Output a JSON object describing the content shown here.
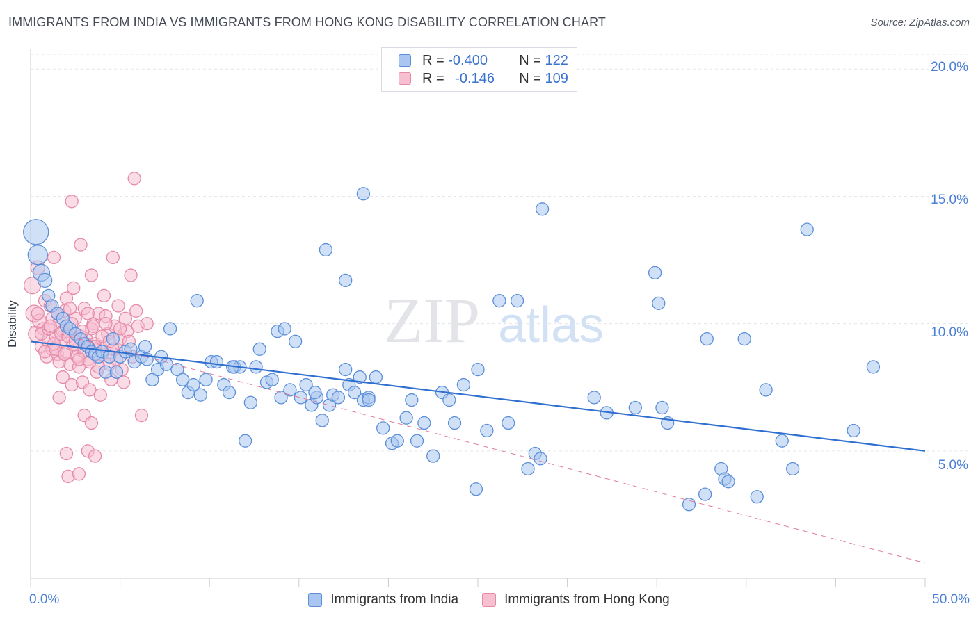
{
  "header": {
    "title": "IMMIGRANTS FROM INDIA VS IMMIGRANTS FROM HONG KONG DISABILITY CORRELATION CHART",
    "source": "Source: ZipAtlas.com"
  },
  "watermark": {
    "zip": "ZIP",
    "atlas": "atlas"
  },
  "legend": {
    "rows": [
      {
        "r_label": "R = ",
        "r_value": "-0.400",
        "n_label": "N = ",
        "n_value": "122",
        "color": "#5b8fd9",
        "fill": "#a9c6f0"
      },
      {
        "r_label": "R = ",
        "r_value": "-0.146",
        "n_label": "N = ",
        "n_value": "109",
        "color": "#e68aa8",
        "fill": "#f6c0d1"
      }
    ]
  },
  "chart_data": {
    "type": "scatter",
    "title": "IMMIGRANTS FROM INDIA VS IMMIGRANTS FROM HONG KONG DISABILITY CORRELATION CHART",
    "xlabel": "",
    "ylabel": "Disability",
    "xlim": [
      0,
      50
    ],
    "ylim": [
      0,
      20.8
    ],
    "x_tick_labels": [
      "0.0%",
      "50.0%"
    ],
    "y_ticks": [
      5,
      10,
      15,
      20
    ],
    "y_tick_labels": [
      "5.0%",
      "10.0%",
      "15.0%",
      "20.0%"
    ],
    "grid": true,
    "legend_position": "bottom-center",
    "series": [
      {
        "name": "Immigrants from India",
        "color": "#5b8fd9",
        "fill": "#a9c6f0",
        "trend": {
          "x": [
            0,
            50
          ],
          "y": [
            9.3,
            5.0
          ],
          "style": "solid"
        },
        "points": [
          [
            0.3,
            13.6,
            18
          ],
          [
            0.4,
            12.7,
            14
          ],
          [
            0.6,
            12.0,
            12
          ],
          [
            0.8,
            11.7,
            10
          ],
          [
            1.0,
            11.1,
            9
          ],
          [
            1.2,
            10.7,
            9
          ],
          [
            1.5,
            10.4,
            9
          ],
          [
            1.8,
            10.2,
            9
          ],
          [
            2.0,
            9.9,
            9
          ],
          [
            2.2,
            9.8,
            9
          ],
          [
            2.5,
            9.6,
            9
          ],
          [
            2.8,
            9.4,
            9
          ],
          [
            3.0,
            9.2,
            9
          ],
          [
            3.2,
            9.1,
            9
          ],
          [
            3.4,
            8.9,
            9
          ],
          [
            3.6,
            8.8,
            9
          ],
          [
            3.8,
            8.7,
            9
          ],
          [
            4.0,
            8.9,
            9
          ],
          [
            4.2,
            8.1,
            9
          ],
          [
            4.4,
            8.7,
            9
          ],
          [
            4.6,
            9.4,
            9
          ],
          [
            4.8,
            8.1,
            9
          ],
          [
            5.0,
            8.7,
            9
          ],
          [
            5.3,
            8.9,
            9
          ],
          [
            5.6,
            9.0,
            9
          ],
          [
            5.8,
            8.5,
            9
          ],
          [
            6.2,
            8.7,
            9
          ],
          [
            6.5,
            8.6,
            9
          ],
          [
            6.4,
            9.1,
            9
          ],
          [
            6.8,
            7.8,
            9
          ],
          [
            7.1,
            8.2,
            9
          ],
          [
            7.3,
            8.7,
            9
          ],
          [
            7.6,
            8.4,
            9
          ],
          [
            7.8,
            9.8,
            9
          ],
          [
            8.2,
            8.2,
            9
          ],
          [
            8.5,
            7.8,
            9
          ],
          [
            8.8,
            7.3,
            9
          ],
          [
            9.1,
            7.6,
            9
          ],
          [
            9.5,
            7.2,
            9
          ],
          [
            9.3,
            10.9,
            9
          ],
          [
            9.8,
            7.8,
            9
          ],
          [
            10.1,
            8.5,
            9
          ],
          [
            10.4,
            8.5,
            9
          ],
          [
            10.8,
            7.6,
            9
          ],
          [
            11.1,
            7.3,
            9
          ],
          [
            11.4,
            8.3,
            9
          ],
          [
            11.7,
            8.3,
            9
          ],
          [
            12.0,
            5.4,
            9
          ],
          [
            12.3,
            6.9,
            9
          ],
          [
            12.6,
            8.3,
            9
          ],
          [
            12.8,
            9.0,
            9
          ],
          [
            13.2,
            7.7,
            9
          ],
          [
            13.5,
            7.8,
            9
          ],
          [
            13.8,
            9.7,
            9
          ],
          [
            14.0,
            7.1,
            9
          ],
          [
            14.2,
            9.8,
            9
          ],
          [
            14.5,
            7.4,
            9
          ],
          [
            14.8,
            9.3,
            9
          ],
          [
            15.1,
            7.1,
            9
          ],
          [
            15.4,
            7.6,
            9
          ],
          [
            15.7,
            6.8,
            9
          ],
          [
            16.0,
            7.1,
            9
          ],
          [
            16.3,
            6.2,
            9
          ],
          [
            16.7,
            6.8,
            9
          ],
          [
            16.9,
            7.2,
            9
          ],
          [
            17.2,
            7.1,
            9
          ],
          [
            17.6,
            8.2,
            9
          ],
          [
            17.8,
            7.6,
            9
          ],
          [
            16.5,
            12.9,
            9
          ],
          [
            18.1,
            7.3,
            9
          ],
          [
            18.4,
            7.9,
            9
          ],
          [
            18.6,
            7.0,
            9
          ],
          [
            18.9,
            7.1,
            9
          ],
          [
            19.3,
            7.9,
            9
          ],
          [
            19.7,
            5.9,
            9
          ],
          [
            20.2,
            5.3,
            9
          ],
          [
            20.5,
            5.4,
            9
          ],
          [
            21.0,
            6.3,
            9
          ],
          [
            21.3,
            7.0,
            9
          ],
          [
            21.6,
            5.4,
            9
          ],
          [
            22.0,
            6.1,
            9
          ],
          [
            22.5,
            4.8,
            9
          ],
          [
            23.0,
            7.3,
            9
          ],
          [
            23.4,
            7.0,
            9
          ],
          [
            23.7,
            6.1,
            9
          ],
          [
            17.6,
            11.7,
            9
          ],
          [
            18.9,
            7.0,
            9
          ],
          [
            24.2,
            7.6,
            9
          ],
          [
            24.9,
            3.5,
            9
          ],
          [
            25.0,
            8.2,
            9
          ],
          [
            25.5,
            5.8,
            9
          ],
          [
            26.2,
            10.9,
            9
          ],
          [
            26.7,
            6.1,
            9
          ],
          [
            27.2,
            10.9,
            9
          ],
          [
            27.8,
            4.3,
            9
          ],
          [
            28.2,
            4.9,
            9
          ],
          [
            28.5,
            4.7,
            9
          ],
          [
            28.6,
            14.5,
            9
          ],
          [
            31.5,
            7.1,
            9
          ],
          [
            32.2,
            6.5,
            9
          ],
          [
            33.8,
            6.7,
            9
          ],
          [
            34.9,
            12.0,
            9
          ],
          [
            35.1,
            10.8,
            9
          ],
          [
            35.3,
            6.7,
            9
          ],
          [
            35.6,
            6.1,
            9
          ],
          [
            37.8,
            9.4,
            9
          ],
          [
            36.8,
            2.9,
            9
          ],
          [
            37.7,
            3.3,
            9
          ],
          [
            38.6,
            4.3,
            9
          ],
          [
            38.8,
            3.9,
            9
          ],
          [
            39.0,
            3.8,
            9
          ],
          [
            39.9,
            9.4,
            9
          ],
          [
            40.6,
            3.2,
            9
          ],
          [
            41.1,
            7.4,
            9
          ],
          [
            42.0,
            5.4,
            9
          ],
          [
            42.6,
            4.3,
            9
          ],
          [
            43.4,
            13.7,
            9
          ],
          [
            46.0,
            5.8,
            9
          ],
          [
            47.1,
            8.3,
            9
          ],
          [
            18.6,
            15.1,
            9
          ],
          [
            11.3,
            8.3,
            9
          ],
          [
            15.9,
            7.3,
            9
          ]
        ]
      },
      {
        "name": "Immigrants from Hong Kong",
        "color": "#e68aa8",
        "fill": "#f6c0d1",
        "trend": {
          "x": [
            0,
            50
          ],
          "y": [
            9.9,
            0.6
          ],
          "style": "dashed"
        },
        "points": [
          [
            0.1,
            11.5,
            12
          ],
          [
            0.2,
            10.4,
            12
          ],
          [
            0.3,
            9.6,
            11
          ],
          [
            0.4,
            12.2,
            10
          ],
          [
            0.5,
            10.1,
            10
          ],
          [
            0.6,
            9.1,
            9
          ],
          [
            0.7,
            9.8,
            9
          ],
          [
            0.8,
            10.9,
            9
          ],
          [
            0.9,
            8.7,
            9
          ],
          [
            1.0,
            9.3,
            9
          ],
          [
            1.1,
            10.7,
            9
          ],
          [
            1.2,
            9.0,
            9
          ],
          [
            1.3,
            12.6,
            9
          ],
          [
            1.4,
            9.5,
            9
          ],
          [
            1.5,
            8.8,
            9
          ],
          [
            1.6,
            10.1,
            9
          ],
          [
            1.7,
            9.3,
            9
          ],
          [
            1.8,
            7.9,
            9
          ],
          [
            1.9,
            10.5,
            9
          ],
          [
            2.0,
            11.0,
            9
          ],
          [
            2.1,
            9.7,
            9
          ],
          [
            2.2,
            8.4,
            9
          ],
          [
            2.3,
            7.6,
            9
          ],
          [
            2.4,
            11.4,
            9
          ],
          [
            2.5,
            10.2,
            9
          ],
          [
            2.6,
            9.0,
            9
          ],
          [
            2.7,
            8.3,
            9
          ],
          [
            2.8,
            13.1,
            9
          ],
          [
            2.9,
            7.7,
            9
          ],
          [
            3.0,
            10.6,
            9
          ],
          [
            3.1,
            9.4,
            9
          ],
          [
            3.2,
            8.6,
            9
          ],
          [
            3.3,
            7.4,
            9
          ],
          [
            3.4,
            11.9,
            9
          ],
          [
            3.5,
            10.0,
            9
          ],
          [
            3.6,
            9.2,
            9
          ],
          [
            3.7,
            8.1,
            9
          ],
          [
            3.8,
            10.4,
            9
          ],
          [
            3.9,
            9.1,
            9
          ],
          [
            4.0,
            8.8,
            9
          ],
          [
            4.1,
            11.1,
            9
          ],
          [
            4.2,
            10.3,
            9
          ],
          [
            4.3,
            9.6,
            9
          ],
          [
            4.4,
            8.4,
            9
          ],
          [
            4.5,
            7.8,
            9
          ],
          [
            4.6,
            12.6,
            9
          ],
          [
            4.7,
            9.9,
            9
          ],
          [
            4.8,
            9.0,
            9
          ],
          [
            4.9,
            10.7,
            9
          ],
          [
            5.0,
            9.4,
            9
          ],
          [
            5.1,
            8.2,
            9
          ],
          [
            5.2,
            7.7,
            9
          ],
          [
            5.3,
            10.2,
            9
          ],
          [
            5.4,
            9.7,
            9
          ],
          [
            5.5,
            9.3,
            9
          ],
          [
            5.6,
            11.9,
            9
          ],
          [
            5.7,
            8.7,
            9
          ],
          [
            5.8,
            15.7,
            9
          ],
          [
            5.9,
            10.5,
            9
          ],
          [
            6.0,
            9.9,
            9
          ],
          [
            2.3,
            14.8,
            9
          ],
          [
            3.0,
            6.4,
            9
          ],
          [
            3.4,
            6.1,
            9
          ],
          [
            3.9,
            7.2,
            9
          ],
          [
            2.0,
            4.9,
            9
          ],
          [
            2.1,
            4.0,
            9
          ],
          [
            2.7,
            4.1,
            9
          ],
          [
            3.2,
            5.0,
            9
          ],
          [
            3.6,
            4.8,
            9
          ],
          [
            6.2,
            6.4,
            9
          ],
          [
            6.5,
            10.0,
            9
          ],
          [
            0.4,
            10.4,
            9
          ],
          [
            0.6,
            9.6,
            9
          ],
          [
            0.8,
            8.9,
            9
          ],
          [
            1.0,
            9.8,
            9
          ],
          [
            1.2,
            10.2,
            9
          ],
          [
            1.4,
            9.0,
            9
          ],
          [
            1.6,
            8.5,
            9
          ],
          [
            1.8,
            9.7,
            9
          ],
          [
            2.0,
            8.9,
            9
          ],
          [
            2.2,
            10.6,
            9
          ],
          [
            2.4,
            9.2,
            9
          ],
          [
            2.6,
            8.7,
            9
          ],
          [
            2.8,
            9.5,
            9
          ],
          [
            3.0,
            8.9,
            9
          ],
          [
            3.2,
            10.4,
            9
          ],
          [
            3.4,
            9.8,
            9
          ],
          [
            3.6,
            9.1,
            9
          ],
          [
            3.8,
            8.3,
            9
          ],
          [
            4.0,
            9.5,
            9
          ],
          [
            4.2,
            10.0,
            9
          ],
          [
            4.4,
            9.3,
            9
          ],
          [
            4.6,
            9.0,
            9
          ],
          [
            4.8,
            8.6,
            9
          ],
          [
            5.0,
            9.8,
            9
          ],
          [
            1.1,
            9.9,
            9
          ],
          [
            1.3,
            9.2,
            9
          ],
          [
            1.5,
            10.4,
            9
          ],
          [
            1.7,
            9.6,
            9
          ],
          [
            1.9,
            8.8,
            9
          ],
          [
            2.1,
            9.5,
            9
          ],
          [
            2.3,
            10.0,
            9
          ],
          [
            2.5,
            9.3,
            9
          ],
          [
            2.7,
            8.6,
            9
          ],
          [
            2.9,
            9.7,
            9
          ],
          [
            3.1,
            9.2,
            9
          ],
          [
            3.3,
            8.5,
            9
          ],
          [
            3.5,
            9.9,
            9
          ],
          [
            1.6,
            7.1,
            9
          ]
        ]
      }
    ]
  },
  "bottom_legend": [
    {
      "label": "Immigrants from India",
      "color": "#5b8fd9",
      "fill": "#a9c6f0"
    },
    {
      "label": "Immigrants from Hong Kong",
      "color": "#e68aa8",
      "fill": "#f6c0d1"
    }
  ]
}
